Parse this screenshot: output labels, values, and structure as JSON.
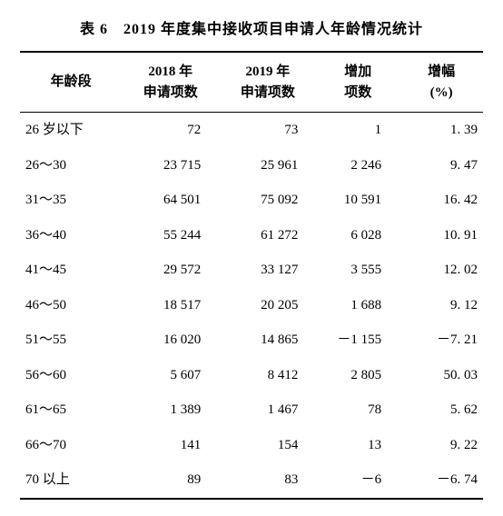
{
  "table_caption": "表 6　2019 年度集中接收项目申请人年龄情况统计",
  "columns": [
    {
      "line1": "年龄段",
      "line2": ""
    },
    {
      "line1": "2018 年",
      "line2": "申请项数"
    },
    {
      "line1": "2019 年",
      "line2": "申请项数"
    },
    {
      "line1": "增加",
      "line2": "项数"
    },
    {
      "line1": "增幅",
      "line2": "(%)"
    }
  ],
  "rows": [
    {
      "age": "26 岁以下",
      "y2018": "72",
      "y2019": "73",
      "inc": "1",
      "pct": "1. 39"
    },
    {
      "age": "26～30",
      "y2018": "23 715",
      "y2019": "25 961",
      "inc": "2 246",
      "pct": "9. 47"
    },
    {
      "age": "31～35",
      "y2018": "64 501",
      "y2019": "75 092",
      "inc": "10 591",
      "pct": "16. 42"
    },
    {
      "age": "36～40",
      "y2018": "55 244",
      "y2019": "61 272",
      "inc": "6 028",
      "pct": "10. 91"
    },
    {
      "age": "41～45",
      "y2018": "29 572",
      "y2019": "33 127",
      "inc": "3 555",
      "pct": "12. 02"
    },
    {
      "age": "46～50",
      "y2018": "18 517",
      "y2019": "20 205",
      "inc": "1 688",
      "pct": "9. 12"
    },
    {
      "age": "51～55",
      "y2018": "16 020",
      "y2019": "14 865",
      "inc": "－1 155",
      "pct": "－7. 21"
    },
    {
      "age": "56～60",
      "y2018": "5 607",
      "y2019": "8 412",
      "inc": "2 805",
      "pct": "50. 03"
    },
    {
      "age": "61～65",
      "y2018": "1 389",
      "y2019": "1 467",
      "inc": "78",
      "pct": "5. 62"
    },
    {
      "age": "66～70",
      "y2018": "141",
      "y2019": "154",
      "inc": "13",
      "pct": "9. 22"
    },
    {
      "age": "70 以上",
      "y2018": "89",
      "y2019": "83",
      "inc": "－6",
      "pct": "－6. 74"
    }
  ],
  "col_widths": [
    "22%",
    "21%",
    "21%",
    "18%",
    "18%"
  ]
}
